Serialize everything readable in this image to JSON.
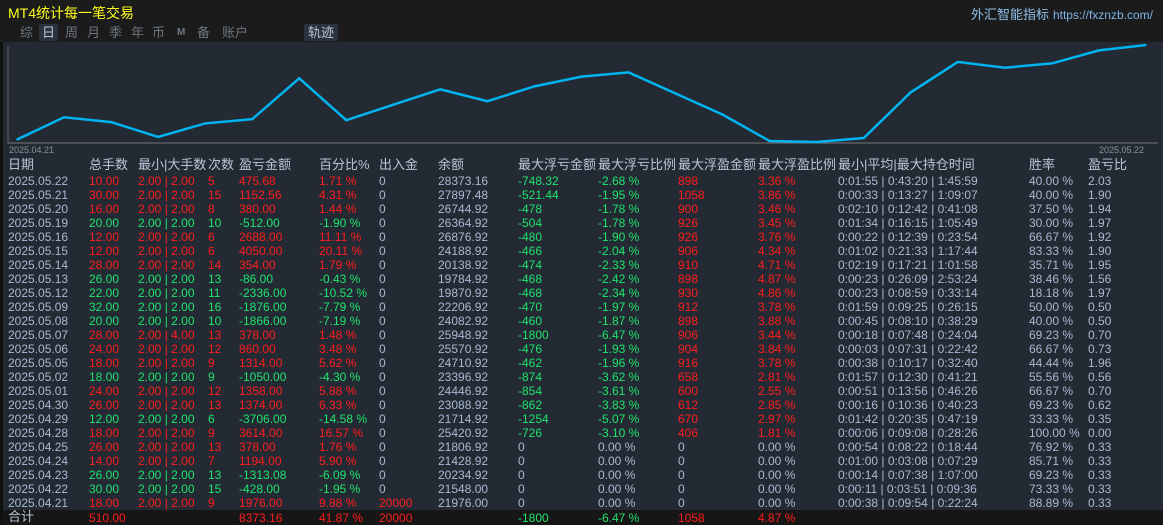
{
  "title": "MT4统计每一笔交易",
  "brand": {
    "name": "外汇智能指标",
    "url": "https://fxznzb.com/"
  },
  "nav": {
    "items": [
      "综",
      "日",
      "周",
      "月",
      "季",
      "年",
      "币",
      "M",
      "备",
      "账户"
    ],
    "active": 1,
    "track": "轨迹"
  },
  "colors": {
    "profit": "#ff1d1d",
    "loss": "#1fe46e",
    "neutral": "#a9b9d2",
    "line": "#00b4f0"
  },
  "chart_data": {
    "type": "line",
    "x_start_label": "2025.04.21",
    "x_end_label": "2025.05.22",
    "values": [
      20000,
      21976,
      21548,
      20234,
      21428,
      21806,
      25420,
      21714,
      23088,
      24446,
      23396,
      24710,
      25570,
      25948,
      24082,
      22206,
      19870,
      19784,
      20138,
      24188,
      26876,
      26364,
      26744,
      27897.48,
      28373.16
    ]
  },
  "table": {
    "headers": [
      "日期",
      "总手数",
      "最小|大手数",
      "次数",
      "盈亏金额",
      "百分比%",
      "出入金",
      "余额",
      "最大浮亏金额",
      "最大浮亏比例",
      "最大浮盈金额",
      "最大浮盈比例",
      "最小|平均|最大持仓时间",
      "胜率",
      "盈亏比"
    ],
    "rows": [
      [
        "2025.05.22",
        "10.00",
        "2.00 | 2.00",
        "5",
        "475.68",
        "1.71 %",
        "0",
        "28373.16",
        "-748.32",
        "-2.68 %",
        "898",
        "3.36 %",
        "0:01:55 | 0:43:20 | 1:45:59",
        "40.00 %",
        "2.03"
      ],
      [
        "2025.05.21",
        "30.00",
        "2.00 | 2.00",
        "15",
        "1152.56",
        "4.31 %",
        "0",
        "27897.48",
        "-521.44",
        "-1.95 %",
        "1058",
        "3.86 %",
        "0:00:33 | 0:13:27 | 1:09:07",
        "40.00 %",
        "1.90"
      ],
      [
        "2025.05.20",
        "16.00",
        "2.00 | 2.00",
        "8",
        "380.00",
        "1.44 %",
        "0",
        "26744.92",
        "-478",
        "-1.78 %",
        "900",
        "3.46 %",
        "0:02:10 | 0:12:42 | 0:41:08",
        "37.50 %",
        "1.94"
      ],
      [
        "2025.05.19",
        "20.00",
        "2.00 | 2.00",
        "10",
        "-512.00",
        "-1.90 %",
        "0",
        "26364.92",
        "-504",
        "-1.78 %",
        "926",
        "3.45 %",
        "0:01:34 | 0:16:15 | 1:05:49",
        "30.00 %",
        "1.97"
      ],
      [
        "2025.05.16",
        "12.00",
        "2.00 | 2.00",
        "6",
        "2688.00",
        "11.11 %",
        "0",
        "26876.92",
        "-480",
        "-1.90 %",
        "926",
        "3.76 %",
        "0:00:22 | 0:12:39 | 0:23:54",
        "66.67 %",
        "1.92"
      ],
      [
        "2025.05.15",
        "12.00",
        "2.00 | 2.00",
        "6",
        "4050.00",
        "20.11 %",
        "0",
        "24188.92",
        "-466",
        "-2.04 %",
        "906",
        "4.34 %",
        "0:01:02 | 0:21:33 | 1:17:44",
        "83.33 %",
        "1.90"
      ],
      [
        "2025.05.14",
        "28.00",
        "2.00 | 2.00",
        "14",
        "354.00",
        "1.79 %",
        "0",
        "20138.92",
        "-474",
        "-2.33 %",
        "910",
        "4.71 %",
        "0:02:19 | 0:17:21 | 1:01:58",
        "35.71 %",
        "1.95"
      ],
      [
        "2025.05.13",
        "26.00",
        "2.00 | 2.00",
        "13",
        "-86.00",
        "-0.43 %",
        "0",
        "19784.92",
        "-468",
        "-2.42 %",
        "898",
        "4.87 %",
        "0:00:23 | 0:26:09 | 2:53:24",
        "38.46 %",
        "1.56"
      ],
      [
        "2025.05.12",
        "22.00",
        "2.00 | 2.00",
        "11",
        "-2336.00",
        "-10.52 %",
        "0",
        "19870.92",
        "-468",
        "-2.34 %",
        "930",
        "4.86 %",
        "0:00:23 | 0:08:59 | 0:33:14",
        "18.18 %",
        "1.97"
      ],
      [
        "2025.05.09",
        "32.00",
        "2.00 | 2.00",
        "16",
        "-1876.00",
        "-7.79 %",
        "0",
        "22206.92",
        "-470",
        "-1.97 %",
        "912",
        "3.78 %",
        "0:01:59 | 0:09:25 | 0:26:15",
        "50.00 %",
        "0.50"
      ],
      [
        "2025.05.08",
        "20.00",
        "2.00 | 2.00",
        "10",
        "-1866.00",
        "-7.19 %",
        "0",
        "24082.92",
        "-460",
        "-1.87 %",
        "898",
        "3.88 %",
        "0:00:45 | 0:08:10 | 0:38:29",
        "40.00 %",
        "0.50"
      ],
      [
        "2025.05.07",
        "28.00",
        "2.00 | 4.00",
        "13",
        "378.00",
        "1.48 %",
        "0",
        "25948.92",
        "-1800",
        "-6.47 %",
        "906",
        "3.44 %",
        "0:00:18 | 0:07:48 | 0:24:04",
        "69.23 %",
        "0.70"
      ],
      [
        "2025.05.06",
        "24.00",
        "2.00 | 2.00",
        "12",
        "860.00",
        "3.48 %",
        "0",
        "25570.92",
        "-476",
        "-1.93 %",
        "904",
        "3.84 %",
        "0:00:03 | 0:07:31 | 0:22:42",
        "66.67 %",
        "0.73"
      ],
      [
        "2025.05.05",
        "18.00",
        "2.00 | 2.00",
        "9",
        "1314.00",
        "5.62 %",
        "0",
        "24710.92",
        "-462",
        "-1.96 %",
        "916",
        "3.78 %",
        "0:00:38 | 0:10:17 | 0:32:40",
        "44.44 %",
        "1.96"
      ],
      [
        "2025.05.02",
        "18.00",
        "2.00 | 2.00",
        "9",
        "-1050.00",
        "-4.30 %",
        "0",
        "23396.92",
        "-874",
        "-3.62 %",
        "658",
        "2.81 %",
        "0:01:57 | 0:12:30 | 0:41:21",
        "55.56 %",
        "0.56"
      ],
      [
        "2025.05.01",
        "24.00",
        "2.00 | 2.00",
        "12",
        "1358.00",
        "5.88 %",
        "0",
        "24446.92",
        "-854",
        "-3.61 %",
        "600",
        "2.55 %",
        "0:00:51 | 0:13:56 | 0:46:26",
        "66.67 %",
        "0.70"
      ],
      [
        "2025.04.30",
        "26.00",
        "2.00 | 2.00",
        "13",
        "1374.00",
        "6.33 %",
        "0",
        "23088.92",
        "-862",
        "-3.83 %",
        "612",
        "2.85 %",
        "0:00:16 | 0:10:36 | 0:40:23",
        "69.23 %",
        "0.62"
      ],
      [
        "2025.04.29",
        "12.00",
        "2.00 | 2.00",
        "6",
        "-3706.00",
        "-14.58 %",
        "0",
        "21714.92",
        "-1254",
        "-5.07 %",
        "670",
        "2.97 %",
        "0:01:42 | 0:20:35 | 0:47:19",
        "33.33 %",
        "0.35"
      ],
      [
        "2025.04.28",
        "18.00",
        "2.00 | 2.00",
        "9",
        "3614.00",
        "16.57 %",
        "0",
        "25420.92",
        "-726",
        "-3.10 %",
        "406",
        "1.81 %",
        "0:00:06 | 0:09:08 | 0:28:26",
        "100.00 %",
        "0.00"
      ],
      [
        "2025.04.25",
        "26.00",
        "2.00 | 2.00",
        "13",
        "378.00",
        "1.76 %",
        "0",
        "21806.92",
        "0",
        "0.00 %",
        "0",
        "0.00 %",
        "0:00:54 | 0:08:22 | 0:18:44",
        "76.92 %",
        "0.33"
      ],
      [
        "2025.04.24",
        "14.00",
        "2.00 | 2.00",
        "7",
        "1194.00",
        "5.90 %",
        "0",
        "21428.92",
        "0",
        "0.00 %",
        "0",
        "0.00 %",
        "0:01:00 | 0:03:08 | 0:07:29",
        "85.71 %",
        "0.33"
      ],
      [
        "2025.04.23",
        "26.00",
        "2.00 | 2.00",
        "13",
        "-1313.08",
        "-6.09 %",
        "0",
        "20234.92",
        "0",
        "0.00 %",
        "0",
        "0.00 %",
        "0:00:14 | 0:07:38 | 1:07:00",
        "69.23 %",
        "0.33"
      ],
      [
        "2025.04.22",
        "30.00",
        "2.00 | 2.00",
        "15",
        "-428.00",
        "-1.95 %",
        "0",
        "21548.00",
        "0",
        "0.00 %",
        "0",
        "0.00 %",
        "0:00:11 | 0:03:51 | 0:09:36",
        "73.33 %",
        "0.33"
      ],
      [
        "2025.04.21",
        "18.00",
        "2.00 | 2.00",
        "9",
        "1976.00",
        "9.88 %",
        "20000",
        "21976.00",
        "0",
        "0.00 %",
        "0",
        "0.00 %",
        "0:00:38 | 0:09:54 | 0:22:24",
        "88.89 %",
        "0.33"
      ]
    ],
    "total": {
      "label": "合计",
      "lots": "510.00",
      "pnl": "8373.16",
      "pct": "41.87 %",
      "deposit": "20000",
      "max_float_loss": "-1800",
      "max_float_loss_pct": "-6.47 %",
      "max_float_profit": "1058",
      "max_float_profit_pct": "4.87 %"
    }
  }
}
